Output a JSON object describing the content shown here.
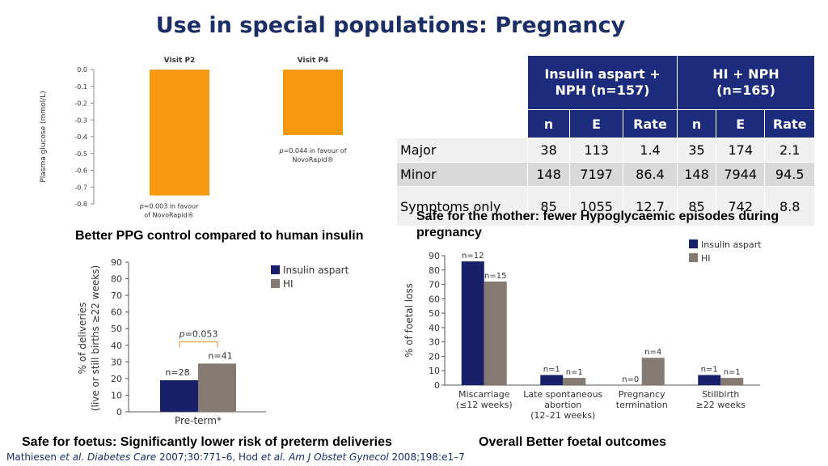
{
  "title": "Use in special populations: Pregnancy",
  "captions": {
    "ppg": "Better PPG control compared to human insulin",
    "mother": "Safe for the mother: fewer Hypoglycaemic episodes during pregnancy",
    "foetus": "Safe for foetus: Significantly lower risk of preterm deliveries",
    "foetal": "Overall Better foetal outcomes"
  },
  "footer": {
    "authors1": "Mathiesen ",
    "etal1": "et al.",
    "journal1": " Diabetes Care",
    "cite1": " 2007;30:771–6, Hod ",
    "etal2": "et al.",
    "journal2": " Am J Obstet Gynecol",
    "cite2": " 2008;198:e1–7"
  },
  "table": {
    "group1": "Insulin aspart + NPH (n=157)",
    "group1_line1": "Insulin aspart +",
    "group1_line2": "NPH (n=157)",
    "group2_line1": "HI + NPH",
    "group2_line2": "(n=165)",
    "sub_headers": [
      "n",
      "E",
      "Rate",
      "n",
      "E",
      "Rate"
    ],
    "rows": [
      {
        "label": "Major",
        "values": [
          "38",
          "113",
          "1.4",
          "35",
          "174",
          "2.1"
        ]
      },
      {
        "label": "Minor",
        "values": [
          "148",
          "7197",
          "86.4",
          "148",
          "7944",
          "94.5"
        ]
      },
      {
        "label": "Symptoms only",
        "values": [
          "85",
          "1055",
          "12.7",
          "85",
          "742",
          "8.8"
        ]
      }
    ]
  },
  "colors": {
    "orange": "#f7990f",
    "navy": "#18206a",
    "taupe": "#857a72",
    "title": "#1b2f66",
    "header_fill": "#1d2b7c"
  },
  "chart_data": [
    {
      "type": "bar",
      "categories": [
        "Visit P2",
        "Visit P4"
      ],
      "values": [
        -0.75,
        -0.39
      ],
      "ylabel": "Plasma glucose (mmol/L)",
      "ylim": [
        -0.8,
        0.0
      ],
      "yticks": [
        "0.0",
        "-0.1",
        "-0.2",
        "-0.3",
        "-0.4",
        "-0.5",
        "-0.6",
        "-0.7",
        "-0.8"
      ],
      "annotations": [
        {
          "p": "p",
          "text": "=0.003 in favour",
          "text2": "of NovoRapid®"
        },
        {
          "p": "p",
          "text": "=0.044 in favour of",
          "text2": "NovoRapid®"
        }
      ]
    },
    {
      "type": "bar",
      "categories": [
        "Pre-term*"
      ],
      "series": [
        {
          "name": "Insulin aspart",
          "values": [
            19
          ],
          "label": "n=28"
        },
        {
          "name": "HI",
          "values": [
            29
          ],
          "label": "n=41"
        }
      ],
      "ylabel": "% of deliveries (live or still births ≥22 weeks)",
      "ylim": [
        0,
        90
      ],
      "yticks": [
        "0",
        "10",
        "20",
        "30",
        "40",
        "50",
        "60",
        "70",
        "80",
        "90"
      ],
      "annotation": {
        "p": "p",
        "text": "=0.053"
      }
    },
    {
      "type": "bar",
      "categories": [
        "Miscarriage (≤12 weeks)",
        "Late spontaneous abortion (12–21 weeks)",
        "Pregnancy termination",
        "Stillbirth ≥22 weeks"
      ],
      "category_lines": [
        [
          "Miscarriage",
          "(≤12 weeks)"
        ],
        [
          "Late spontaneous",
          "abortion",
          "(12–21 weeks)"
        ],
        [
          "Pregnancy",
          "termination"
        ],
        [
          "Stillbirth",
          "≥22 weeks"
        ]
      ],
      "series": [
        {
          "name": "Insulin aspart",
          "values": [
            86,
            7,
            0,
            7
          ],
          "labels": [
            "n=12",
            "n=1",
            "n=0",
            "n=1"
          ]
        },
        {
          "name": "HI",
          "values": [
            72,
            5,
            19,
            5
          ],
          "labels": [
            "n=15",
            "n=1",
            "n=4",
            "n=1"
          ]
        }
      ],
      "ylabel": "% of foetal loss",
      "ylim": [
        0,
        90
      ],
      "yticks": [
        "0",
        "10",
        "20",
        "30",
        "40",
        "50",
        "60",
        "70",
        "80",
        "90"
      ]
    }
  ]
}
